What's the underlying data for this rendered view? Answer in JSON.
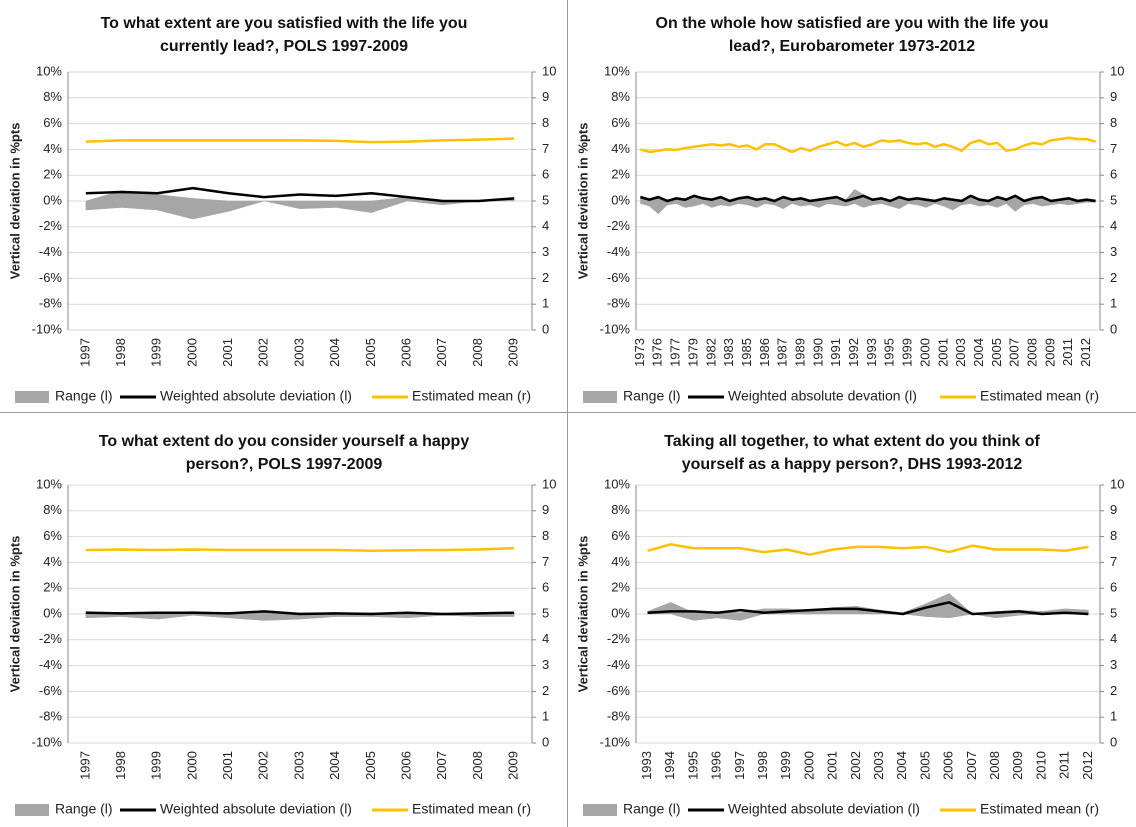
{
  "chart_data": [
    {
      "type": "line",
      "title": "To what extent are you satisfied with the life you currently lead?, POLS 1997-2009",
      "ylabel": "Vertical deviation in %pts",
      "categories": [
        "1997",
        "1998",
        "1999",
        "2000",
        "2001",
        "2002",
        "2003",
        "2004",
        "2005",
        "2006",
        "2007",
        "2008",
        "2009"
      ],
      "series": [
        {
          "name": "Range (l)",
          "color": "#a6a6a6",
          "high": [
            0,
            0.8,
            0.5,
            0.2,
            0,
            0,
            0,
            0,
            0,
            0.3,
            0,
            0,
            0.2
          ],
          "low": [
            -0.7,
            -0.5,
            -0.7,
            -1.4,
            -0.8,
            0,
            -0.6,
            -0.5,
            -0.9,
            0,
            -0.3,
            0,
            0
          ]
        },
        {
          "name": "Weighted absolute deviation (l)",
          "color": "#000000",
          "values": [
            0.6,
            0.7,
            0.6,
            1.0,
            0.6,
            0.3,
            0.5,
            0.4,
            0.6,
            0.3,
            0.0,
            0.0,
            0.2
          ]
        },
        {
          "name": "Estimated mean (r)",
          "color": "#ffc000",
          "axis": "y2",
          "values": [
            7.3,
            7.35,
            7.35,
            7.35,
            7.35,
            7.35,
            7.35,
            7.33,
            7.28,
            7.3,
            7.35,
            7.38,
            7.42
          ]
        }
      ],
      "ylim": [
        -10,
        10
      ],
      "yticks": [
        {
          "value": -10,
          "label": "-10%"
        },
        {
          "value": -8,
          "label": "-8%"
        },
        {
          "value": -6,
          "label": "-6%"
        },
        {
          "value": -4,
          "label": "-4%"
        },
        {
          "value": -2,
          "label": "-2%"
        },
        {
          "value": 0,
          "label": "0%"
        },
        {
          "value": 2,
          "label": "2%"
        },
        {
          "value": 4,
          "label": "4%"
        },
        {
          "value": 6,
          "label": "6%"
        },
        {
          "value": 8,
          "label": "8%"
        },
        {
          "value": 10,
          "label": "10%"
        }
      ],
      "y2lim": [
        0,
        10
      ],
      "y2ticks": [
        0,
        1,
        2,
        3,
        4,
        5,
        6,
        7,
        8,
        9,
        10
      ],
      "grid": true,
      "legend": "bottom"
    },
    {
      "type": "line",
      "title": "On the whole how satisfied are you with the life you lead?, Eurobarometer 1973-2012",
      "ylabel": "Vertical deviation in %pts",
      "categories": [
        "1973",
        null,
        "1976",
        null,
        "1977",
        null,
        "1979",
        null,
        "1982",
        null,
        "1983",
        null,
        "1985",
        null,
        "1986",
        null,
        "1987",
        null,
        "1989",
        null,
        "1990",
        null,
        "1991",
        null,
        "1992",
        null,
        "1993",
        null,
        "1995",
        null,
        "1999",
        null,
        "2000",
        null,
        "2001",
        null,
        "2003",
        null,
        "2004",
        null,
        "2005",
        null,
        "2007",
        null,
        "2008",
        null,
        "2009",
        null,
        "2011",
        null,
        "2012",
        null
      ],
      "series": [
        {
          "name": "Range (l)",
          "color": "#a6a6a6",
          "high": [
            0.4,
            0.2,
            0.4,
            0.1,
            0.3,
            0.2,
            0.5,
            0.3,
            0.2,
            0.4,
            0.1,
            0.3,
            0.4,
            0.2,
            0.3,
            0.1,
            0.4,
            0.2,
            0.3,
            0.1,
            0.2,
            0.3,
            0.4,
            0.1,
            0.9,
            0.5,
            0.2,
            0.3,
            0.1,
            0.4,
            0.2,
            0.3,
            0.2,
            0.1,
            0.3,
            0.2,
            0.1,
            0.5,
            0.2,
            0.1,
            0.4,
            0.2,
            0.5,
            0.1,
            0.3,
            0.4,
            0.1,
            0.2,
            0.3,
            0.1,
            0.2,
            0.1
          ],
          "low": [
            -0.2,
            -0.4,
            -1.0,
            -0.3,
            -0.2,
            -0.5,
            -0.4,
            -0.2,
            -0.5,
            -0.3,
            -0.4,
            -0.2,
            -0.3,
            -0.5,
            -0.2,
            -0.3,
            -0.6,
            -0.2,
            -0.4,
            -0.3,
            -0.5,
            -0.2,
            -0.3,
            -0.4,
            -0.2,
            -0.5,
            -0.3,
            -0.2,
            -0.4,
            -0.6,
            -0.2,
            -0.3,
            -0.5,
            -0.2,
            -0.4,
            -0.7,
            -0.3,
            -0.2,
            -0.4,
            -0.3,
            -0.5,
            -0.2,
            -0.8,
            -0.3,
            -0.2,
            -0.4,
            -0.3,
            -0.2,
            -0.3,
            -0.2,
            -0.1,
            -0.1
          ]
        },
        {
          "name": "Weighted absolute devation (l)",
          "color": "#000000",
          "values": [
            0.3,
            0.1,
            0.3,
            0.0,
            0.2,
            0.1,
            0.4,
            0.2,
            0.1,
            0.3,
            0.0,
            0.2,
            0.3,
            0.1,
            0.2,
            0.0,
            0.3,
            0.1,
            0.2,
            0.0,
            0.1,
            0.2,
            0.3,
            0.0,
            0.2,
            0.4,
            0.1,
            0.2,
            0.0,
            0.3,
            0.1,
            0.2,
            0.1,
            0.0,
            0.2,
            0.1,
            0.0,
            0.4,
            0.1,
            0.0,
            0.3,
            0.1,
            0.4,
            0.0,
            0.2,
            0.3,
            0.0,
            0.1,
            0.2,
            0.0,
            0.1,
            0.0
          ]
        },
        {
          "name": "Estimated mean (r)",
          "color": "#ffc000",
          "axis": "y2",
          "values": [
            7.0,
            6.9,
            6.95,
            7.0,
            6.98,
            7.05,
            7.1,
            7.15,
            7.2,
            7.15,
            7.2,
            7.1,
            7.15,
            7.0,
            7.2,
            7.2,
            7.05,
            6.9,
            7.05,
            6.95,
            7.1,
            7.2,
            7.3,
            7.15,
            7.25,
            7.1,
            7.2,
            7.35,
            7.3,
            7.35,
            7.25,
            7.2,
            7.25,
            7.1,
            7.2,
            7.1,
            6.95,
            7.25,
            7.35,
            7.2,
            7.25,
            6.95,
            7.0,
            7.15,
            7.25,
            7.2,
            7.35,
            7.4,
            7.45,
            7.4,
            7.4,
            7.3
          ]
        }
      ],
      "ylim": [
        -10,
        10
      ],
      "yticks": [
        {
          "value": -10,
          "label": "-10%"
        },
        {
          "value": -8,
          "label": "-8%"
        },
        {
          "value": -6,
          "label": "-6%"
        },
        {
          "value": -4,
          "label": "-4%"
        },
        {
          "value": -2,
          "label": "-2%"
        },
        {
          "value": 0,
          "label": "0%"
        },
        {
          "value": 2,
          "label": "2%"
        },
        {
          "value": 4,
          "label": "4%"
        },
        {
          "value": 6,
          "label": "6%"
        },
        {
          "value": 8,
          "label": "8%"
        },
        {
          "value": 10,
          "label": "10%"
        }
      ],
      "y2lim": [
        0,
        10
      ],
      "y2ticks": [
        0,
        1,
        2,
        3,
        4,
        5,
        6,
        7,
        8,
        9,
        10
      ],
      "grid": true,
      "legend": "bottom"
    },
    {
      "type": "line",
      "title": "To what extent do you consider yourself a happy person?, POLS 1997-2009",
      "ylabel": "Vertical deviation in %pts",
      "categories": [
        "1997",
        "1998",
        "1999",
        "2000",
        "2001",
        "2002",
        "2003",
        "2004",
        "2005",
        "2006",
        "2007",
        "2008",
        "2009"
      ],
      "series": [
        {
          "name": "Range (l)",
          "color": "#a6a6a6",
          "high": [
            0.2,
            0.1,
            0.1,
            0.2,
            0.1,
            0.2,
            0.1,
            0.1,
            0.1,
            0.1,
            0.0,
            0.1,
            0.1
          ],
          "low": [
            -0.3,
            -0.2,
            -0.4,
            -0.1,
            -0.3,
            -0.5,
            -0.4,
            -0.2,
            -0.2,
            -0.3,
            -0.1,
            -0.2,
            -0.2
          ]
        },
        {
          "name": "Weighted absolute deviation (l)",
          "color": "#000000",
          "values": [
            0.1,
            0.05,
            0.1,
            0.1,
            0.05,
            0.2,
            0.0,
            0.05,
            0.0,
            0.1,
            0.0,
            0.05,
            0.1
          ]
        },
        {
          "name": "Estimated mean (r)",
          "color": "#ffc000",
          "axis": "y2",
          "values": [
            7.48,
            7.5,
            7.48,
            7.5,
            7.48,
            7.48,
            7.48,
            7.48,
            7.45,
            7.47,
            7.48,
            7.5,
            7.55
          ]
        }
      ],
      "ylim": [
        -10,
        10
      ],
      "yticks": [
        {
          "value": -10,
          "label": "-10%"
        },
        {
          "value": -8,
          "label": "-8%"
        },
        {
          "value": -6,
          "label": "-6%"
        },
        {
          "value": -4,
          "label": "-4%"
        },
        {
          "value": -2,
          "label": "-2%"
        },
        {
          "value": 0,
          "label": "0%"
        },
        {
          "value": 2,
          "label": "2%"
        },
        {
          "value": 4,
          "label": "4%"
        },
        {
          "value": 6,
          "label": "6%"
        },
        {
          "value": 8,
          "label": "8%"
        },
        {
          "value": 10,
          "label": "10%"
        }
      ],
      "y2lim": [
        0,
        10
      ],
      "y2ticks": [
        0,
        1,
        2,
        3,
        4,
        5,
        6,
        7,
        8,
        9,
        10
      ],
      "grid": true,
      "legend": "bottom"
    },
    {
      "type": "line",
      "title": "Taking all together, to what extent do you think of yourself as a happy person?, DHS 1993-2012",
      "ylabel": "Vertical deviation in %pts",
      "categories": [
        "1993",
        "1994",
        "1995",
        "1996",
        "1997",
        "1998",
        "1999",
        "2000",
        "2001",
        "2002",
        "2003",
        "2004",
        "2005",
        "2006",
        "2007",
        "2008",
        "2009",
        "2010",
        "2011",
        "2012"
      ],
      "series": [
        {
          "name": "Range (l)",
          "color": "#a6a6a6",
          "high": [
            0.2,
            0.9,
            0.1,
            0.2,
            0.1,
            0.4,
            0.4,
            0.3,
            0.5,
            0.6,
            0.3,
            0.1,
            0.8,
            1.6,
            0.0,
            0.2,
            0.3,
            0.2,
            0.4,
            0.3
          ],
          "low": [
            0,
            0,
            -0.5,
            -0.3,
            -0.5,
            0,
            0,
            0,
            0,
            0,
            0,
            0,
            -0.2,
            -0.3,
            0,
            -0.3,
            -0.1,
            0,
            0,
            0
          ]
        },
        {
          "name": "Weighted absolute deviation (l)",
          "color": "#000000",
          "values": [
            0.1,
            0.2,
            0.2,
            0.1,
            0.3,
            0.1,
            0.2,
            0.3,
            0.4,
            0.4,
            0.2,
            0.0,
            0.5,
            0.9,
            0.0,
            0.1,
            0.2,
            0.0,
            0.1,
            0.0
          ]
        },
        {
          "name": "Estimated mean (r)",
          "color": "#ffc000",
          "axis": "y2",
          "values": [
            7.45,
            7.7,
            7.55,
            7.55,
            7.55,
            7.4,
            7.5,
            7.3,
            7.5,
            7.6,
            7.6,
            7.55,
            7.6,
            7.4,
            7.65,
            7.5,
            7.5,
            7.5,
            7.45,
            7.6
          ]
        }
      ],
      "ylim": [
        -10,
        10
      ],
      "yticks": [
        {
          "value": -10,
          "label": "-10%"
        },
        {
          "value": -8,
          "label": "-8%"
        },
        {
          "value": -6,
          "label": "-6%"
        },
        {
          "value": -4,
          "label": "-4%"
        },
        {
          "value": -2,
          "label": "-2%"
        },
        {
          "value": 0,
          "label": "0%"
        },
        {
          "value": 2,
          "label": "2%"
        },
        {
          "value": 4,
          "label": "4%"
        },
        {
          "value": 6,
          "label": "6%"
        },
        {
          "value": 8,
          "label": "8%"
        },
        {
          "value": 10,
          "label": "10%"
        }
      ],
      "y2lim": [
        0,
        10
      ],
      "y2ticks": [
        0,
        1,
        2,
        3,
        4,
        5,
        6,
        7,
        8,
        9,
        10
      ],
      "grid": true,
      "legend": "bottom"
    }
  ]
}
